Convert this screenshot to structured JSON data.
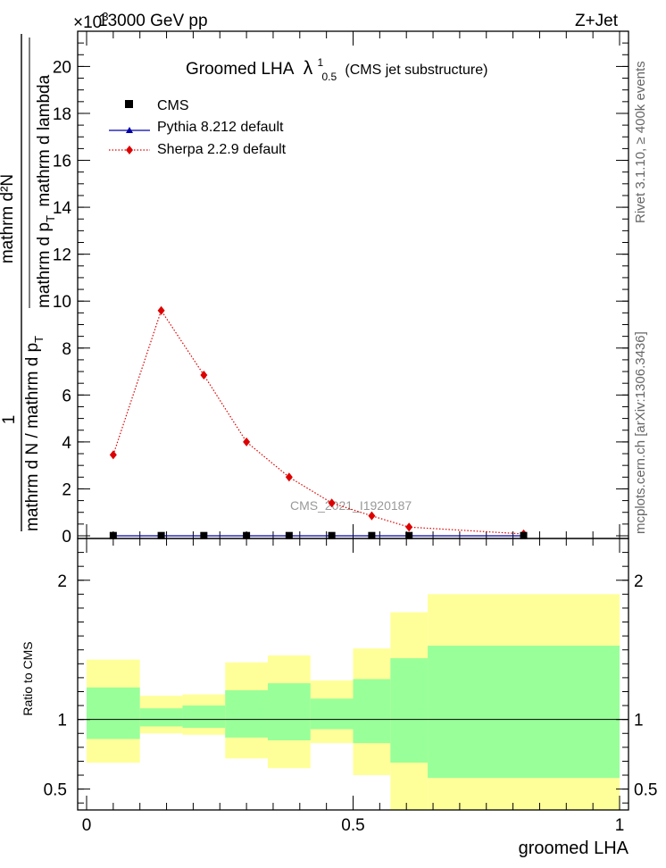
{
  "header": {
    "energy": "13000 GeV pp",
    "process": "Z+Jet",
    "exponent": "×10",
    "exponent_power": "3"
  },
  "side_labels": {
    "rivet": "Rivet 3.1.10, ≥ 400k events",
    "mcplots": "mcplots.cern.ch [arXiv:1306.3436]"
  },
  "main_plot": {
    "title": "Groomed LHA",
    "title_symbol": "λ",
    "title_sup": "1",
    "title_sub": "0.5",
    "title_suffix": "(CMS jet substructure)",
    "watermark": "CMS_2021_I1920187",
    "ylabel_num": "1",
    "ylabel_den": "mathrm d N / mathrm d p",
    "ylabel_frac_num": "mathrm d²N",
    "ylabel_frac_den": "mathrm d p",
    "ylabel_frac_den2": "mathrm d lambda",
    "ylabel_sub_t": "T"
  },
  "legend": {
    "entries": [
      {
        "label": "CMS",
        "marker": "square",
        "color": "#000000"
      },
      {
        "label": "Pythia 8.212 default",
        "marker": "triangle",
        "color": "#0000aa"
      },
      {
        "label": "Sherpa 2.2.9 default",
        "marker": "diamond",
        "color": "#dd0000"
      }
    ]
  },
  "ratio_plot": {
    "ylabel": "Ratio to CMS"
  },
  "xaxis": {
    "label": "groomed LHA",
    "ticks": [
      "0",
      "0.5",
      "1"
    ]
  },
  "chart_data": [
    {
      "type": "line",
      "title": "Groomed LHA λ^1_0.5 (CMS jet substructure)",
      "xlim": [
        0,
        1
      ],
      "ylim": [
        0,
        21.5
      ],
      "y_multiplier": "×10^3",
      "y_ticks": [
        "0",
        "2",
        "4",
        "6",
        "8",
        "10",
        "12",
        "14",
        "16",
        "18",
        "20"
      ],
      "bins": [
        0,
        0.1,
        0.18,
        0.26,
        0.34,
        0.42,
        0.5,
        0.57,
        0.64,
        1.0
      ],
      "series": [
        {
          "name": "CMS",
          "x": [
            0.05,
            0.14,
            0.22,
            0.3,
            0.38,
            0.46,
            0.535,
            0.605,
            0.82
          ],
          "values": [
            0.012,
            0.012,
            0.012,
            0.012,
            0.012,
            0.012,
            0.012,
            0.012,
            0.012
          ]
        },
        {
          "name": "Pythia 8.212 default",
          "x": [
            0.05,
            0.14,
            0.22,
            0.3,
            0.38,
            0.46,
            0.535,
            0.605,
            0.82
          ],
          "values": [
            0.0,
            0.0,
            0.0,
            0.0,
            0.0,
            0.0,
            0.0,
            0.0,
            0.0
          ]
        },
        {
          "name": "Sherpa 2.2.9 default",
          "x": [
            0.05,
            0.14,
            0.22,
            0.3,
            0.38,
            0.46,
            0.535,
            0.605,
            0.82
          ],
          "values": [
            3.45,
            9.6,
            6.85,
            4.0,
            2.5,
            1.4,
            0.85,
            0.37,
            0.08
          ]
        }
      ]
    },
    {
      "type": "area",
      "title": "Ratio to CMS",
      "xlim": [
        0,
        1
      ],
      "ylim": [
        0.35,
        2.3
      ],
      "y_ticks": [
        "0.5",
        "1",
        "2"
      ],
      "bins": [
        0,
        0.1,
        0.18,
        0.26,
        0.34,
        0.42,
        0.5,
        0.57,
        0.64,
        1.0
      ],
      "series": [
        {
          "name": "CMS total uncertainty",
          "low": [
            0.69,
            0.9,
            0.89,
            0.72,
            0.65,
            0.83,
            0.6,
            0.35,
            0.35
          ],
          "high": [
            1.43,
            1.17,
            1.18,
            1.41,
            1.46,
            1.28,
            1.51,
            1.77,
            1.9
          ]
        },
        {
          "name": "CMS stat uncertainty",
          "low": [
            0.86,
            0.95,
            0.94,
            0.87,
            0.85,
            0.93,
            0.83,
            0.69,
            0.58
          ],
          "high": [
            1.23,
            1.08,
            1.1,
            1.21,
            1.26,
            1.15,
            1.29,
            1.44,
            1.53
          ]
        }
      ]
    }
  ]
}
